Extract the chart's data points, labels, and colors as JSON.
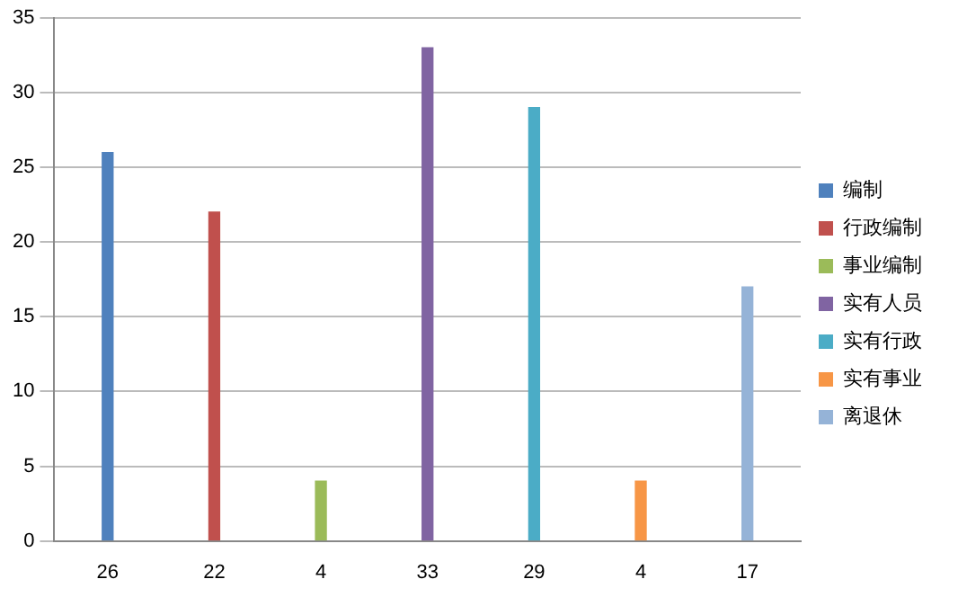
{
  "chart_data": {
    "type": "bar",
    "categories": [
      "26",
      "22",
      "4",
      "33",
      "29",
      "4",
      "17"
    ],
    "series": [
      {
        "name": "编制",
        "color": "#4f81bd",
        "values": [
          26,
          null,
          null,
          null,
          null,
          null,
          null
        ]
      },
      {
        "name": "行政编制",
        "color": "#c0504d",
        "values": [
          null,
          22,
          null,
          null,
          null,
          null,
          null
        ]
      },
      {
        "name": "事业编制",
        "color": "#9bbb59",
        "values": [
          null,
          null,
          4,
          null,
          null,
          null,
          null
        ]
      },
      {
        "name": "实有人员",
        "color": "#8064a2",
        "values": [
          null,
          null,
          null,
          33,
          null,
          null,
          null
        ]
      },
      {
        "name": "实有行政",
        "color": "#4bacc6",
        "values": [
          null,
          null,
          null,
          null,
          29,
          null,
          null
        ]
      },
      {
        "name": "实有事业",
        "color": "#f79646",
        "values": [
          null,
          null,
          null,
          null,
          null,
          4,
          null
        ]
      },
      {
        "name": "离退休",
        "color": "#95b3d7",
        "values": [
          null,
          null,
          null,
          null,
          null,
          null,
          17
        ]
      }
    ],
    "ylim": [
      0,
      35
    ],
    "yticks": [
      0,
      5,
      10,
      15,
      20,
      25,
      30,
      35
    ],
    "grid": "y",
    "legend": "right"
  }
}
